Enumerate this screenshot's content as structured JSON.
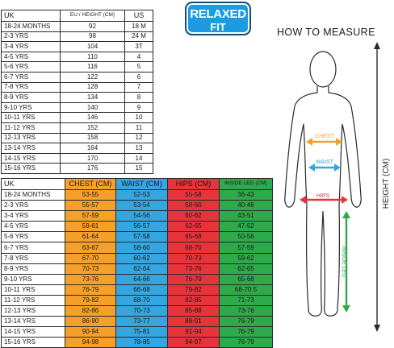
{
  "badge": {
    "line1": "RELAXED",
    "line2": "FIT"
  },
  "measure": {
    "title": "HOW TO MEASURE",
    "chest": "CHEST",
    "waist": "WAIST",
    "hips": "HIPS",
    "inside_leg": "INSIDE LEG",
    "height": "HEIGHT (CM)"
  },
  "colors": {
    "chest": "#f5a02b",
    "waist": "#35a6e0",
    "hips": "#e7333a",
    "inside_leg": "#2eaa4a"
  },
  "table1": {
    "headers": [
      "UK",
      "EU / HEIGHT (CM)",
      "US"
    ],
    "rows": [
      [
        "18-24 MONTHS",
        "92",
        "18 M"
      ],
      [
        "2-3 YRS",
        "98",
        "24 M"
      ],
      [
        "3-4 YRS",
        "104",
        "3T"
      ],
      [
        "4-5 YRS",
        "110",
        "4"
      ],
      [
        "5-6 YRS",
        "116",
        "5"
      ],
      [
        "6-7 YRS",
        "122",
        "6"
      ],
      [
        "7-8 YRS",
        "128",
        "7"
      ],
      [
        "8-9 YRS",
        "134",
        "8"
      ],
      [
        "9-10 YRS",
        "140",
        "9"
      ],
      [
        "10-11 YRS",
        "146",
        "10"
      ],
      [
        "11-12 YRS",
        "152",
        "11"
      ],
      [
        "12-13 YRS",
        "158",
        "12"
      ],
      [
        "13-14 YRS",
        "164",
        "13"
      ],
      [
        "14-15 YRS",
        "170",
        "14"
      ],
      [
        "15-16 YRS",
        "176",
        "15"
      ]
    ]
  },
  "table2": {
    "headers": [
      "UK",
      "CHEST (CM)",
      "WAIST (CM)",
      "HIPS (CM)",
      "INSIDE LEG (CM)"
    ],
    "rows": [
      [
        "18-24 MONTHS",
        "53-55",
        "52-53",
        "55-58",
        "36-43"
      ],
      [
        "2-3 YRS",
        "55-57",
        "53-54",
        "58-60",
        "40-46"
      ],
      [
        "3-4 YRS",
        "57-59",
        "54-56",
        "60-62",
        "43-51"
      ],
      [
        "4-5 YRS",
        "59-61",
        "56-57",
        "62-65",
        "47-52"
      ],
      [
        "5-6 YRS",
        "61-64",
        "57-58",
        "65-68",
        "50-56"
      ],
      [
        "6-7 YRS",
        "63-67",
        "58-60",
        "68-70",
        "57-59"
      ],
      [
        "7-8 YRS",
        "67-70",
        "60-62",
        "70-73",
        "59-62"
      ],
      [
        "8-9 YRS",
        "70-73",
        "62-64",
        "73-76",
        "62-65"
      ],
      [
        "9-10 YRS",
        "73-76",
        "64-66",
        "76-79",
        "65-68"
      ],
      [
        "10-11 YRS",
        "76-79",
        "66-68",
        "79-82",
        "68-70.5"
      ],
      [
        "11-12 YRS",
        "79-82",
        "68-70",
        "82-85",
        "71-73"
      ],
      [
        "12-13 YRS",
        "82-86",
        "70-73",
        "85-88",
        "73-76"
      ],
      [
        "13-14 YRS",
        "86-90",
        "73-77",
        "88-91",
        "76-79"
      ],
      [
        "14-15 YRS",
        "90-94",
        "75-81",
        "91-94",
        "76-79"
      ],
      [
        "15-16 YRS",
        "94-98",
        "78-85",
        "94-97",
        "76-79"
      ]
    ]
  }
}
